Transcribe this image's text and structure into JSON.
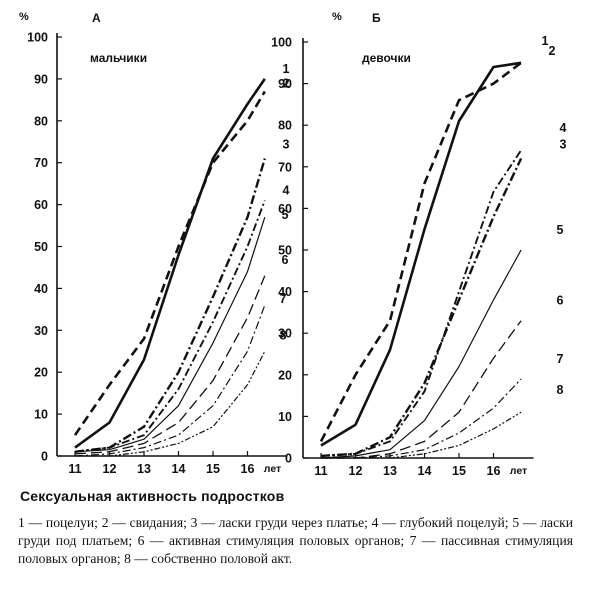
{
  "chart_data": [
    {
      "type": "line",
      "panel_letter": "А",
      "subtitle": "мальчики",
      "y_unit": "%",
      "ylim": [
        0,
        100
      ],
      "y_ticks": [
        "0",
        "10",
        "20",
        "30",
        "40",
        "50",
        "60",
        "70",
        "80",
        "90",
        "100"
      ],
      "x": [
        "11",
        "12",
        "13",
        "14",
        "15",
        "16"
      ],
      "x_unit": "лет",
      "series": [
        {
          "name": "1",
          "style": "solid-bold",
          "points": [
            [
              11,
              2
            ],
            [
              12,
              8
            ],
            [
              13,
              23
            ],
            [
              14,
              48
            ],
            [
              15,
              71
            ],
            [
              16,
              84
            ],
            [
              16.5,
              90
            ]
          ]
        },
        {
          "name": "2",
          "style": "dash-bold",
          "points": [
            [
              11,
              5
            ],
            [
              12,
              17
            ],
            [
              13,
              28
            ],
            [
              14,
              50
            ],
            [
              15,
              70
            ],
            [
              16,
              80
            ],
            [
              16.5,
              87
            ]
          ]
        },
        {
          "name": "3",
          "style": "dashdot-bold",
          "points": [
            [
              11,
              1
            ],
            [
              12,
              2
            ],
            [
              13,
              7
            ],
            [
              14,
              20
            ],
            [
              15,
              38
            ],
            [
              16,
              57
            ],
            [
              16.5,
              71
            ]
          ]
        },
        {
          "name": "4",
          "style": "dashdot",
          "points": [
            [
              11,
              1
            ],
            [
              12,
              2
            ],
            [
              13,
              5
            ],
            [
              14,
              16
            ],
            [
              15,
              32
            ],
            [
              16,
              50
            ],
            [
              16.5,
              61
            ]
          ]
        },
        {
          "name": "5",
          "style": "solid-thin",
          "points": [
            [
              11,
              1
            ],
            [
              12,
              1.5
            ],
            [
              13,
              4
            ],
            [
              14,
              12
            ],
            [
              15,
              27
            ],
            [
              16,
              44
            ],
            [
              16.5,
              57
            ]
          ]
        },
        {
          "name": "6",
          "style": "longdash-thin",
          "points": [
            [
              11,
              0.5
            ],
            [
              12,
              1
            ],
            [
              13,
              3
            ],
            [
              14,
              8
            ],
            [
              15,
              18
            ],
            [
              16,
              33
            ],
            [
              16.5,
              43
            ]
          ]
        },
        {
          "name": "7",
          "style": "dashdot-thin",
          "points": [
            [
              11,
              0
            ],
            [
              12,
              0.5
            ],
            [
              13,
              2
            ],
            [
              14,
              5
            ],
            [
              15,
              12
            ],
            [
              16,
              25
            ],
            [
              16.5,
              36
            ]
          ]
        },
        {
          "name": "8",
          "style": "dashdotdot-thin",
          "points": [
            [
              11,
              0
            ],
            [
              12,
              0
            ],
            [
              13,
              1
            ],
            [
              14,
              3
            ],
            [
              15,
              7
            ],
            [
              16,
              17
            ],
            [
              16.5,
              25
            ]
          ]
        }
      ]
    },
    {
      "type": "line",
      "panel_letter": "Б",
      "subtitle": "девочки",
      "y_unit": "%",
      "ylim": [
        0,
        100
      ],
      "y_ticks": [
        "0",
        "10",
        "20",
        "30",
        "40",
        "50",
        "60",
        "70",
        "80",
        "90",
        "100"
      ],
      "x": [
        "11",
        "12",
        "13",
        "14",
        "15",
        "16"
      ],
      "x_unit": "лет",
      "series": [
        {
          "name": "1",
          "style": "solid-bold",
          "points": [
            [
              11,
              3
            ],
            [
              12,
              8
            ],
            [
              13,
              26
            ],
            [
              14,
              55
            ],
            [
              15,
              81
            ],
            [
              16,
              94
            ],
            [
              16.8,
              95
            ]
          ]
        },
        {
          "name": "2",
          "style": "dash-bold",
          "points": [
            [
              11,
              4
            ],
            [
              12,
              20
            ],
            [
              13,
              33
            ],
            [
              14,
              66
            ],
            [
              15,
              86
            ],
            [
              16,
              90
            ],
            [
              16.8,
              95
            ]
          ]
        },
        {
          "name": "3",
          "style": "dashdot-bold",
          "points": [
            [
              11,
              0.5
            ],
            [
              12,
              1
            ],
            [
              13,
              5
            ],
            [
              14,
              18
            ],
            [
              15,
              38
            ],
            [
              16,
              58
            ],
            [
              16.8,
              72
            ]
          ]
        },
        {
          "name": "4",
          "style": "dashdot",
          "points": [
            [
              11,
              0.5
            ],
            [
              12,
              1
            ],
            [
              13,
              4
            ],
            [
              14,
              16
            ],
            [
              15,
              40
            ],
            [
              16,
              64
            ],
            [
              16.8,
              74
            ]
          ]
        },
        {
          "name": "5",
          "style": "solid-thin",
          "points": [
            [
              11,
              0
            ],
            [
              12,
              0.5
            ],
            [
              13,
              2
            ],
            [
              14,
              9
            ],
            [
              15,
              22
            ],
            [
              16,
              38
            ],
            [
              16.8,
              50
            ]
          ]
        },
        {
          "name": "6",
          "style": "longdash-thin",
          "points": [
            [
              11,
              0
            ],
            [
              12,
              0
            ],
            [
              13,
              1
            ],
            [
              14,
              4
            ],
            [
              15,
              11
            ],
            [
              16,
              24
            ],
            [
              16.8,
              33
            ]
          ]
        },
        {
          "name": "7",
          "style": "dashdot-thin",
          "points": [
            [
              11,
              0
            ],
            [
              12,
              0
            ],
            [
              13,
              0.5
            ],
            [
              14,
              2
            ],
            [
              15,
              6
            ],
            [
              16,
              12
            ],
            [
              16.8,
              19
            ]
          ]
        },
        {
          "name": "8",
          "style": "dashdotdot-thin",
          "points": [
            [
              11,
              0
            ],
            [
              12,
              0
            ],
            [
              13,
              0
            ],
            [
              14,
              1
            ],
            [
              15,
              3
            ],
            [
              16,
              7
            ],
            [
              16.8,
              11
            ]
          ]
        }
      ]
    }
  ],
  "caption": {
    "title": "Сексуальная активность подростков",
    "text": "1 — поцелуи; 2 — свидания; 3 — ласки груди через платье; 4 — глубокий поцелуй; 5 — ласки груди под платьем; 6 — активная стимуляция половых органов; 7 — пассивная стимуляция половых органов; 8 — собственно половой акт."
  }
}
